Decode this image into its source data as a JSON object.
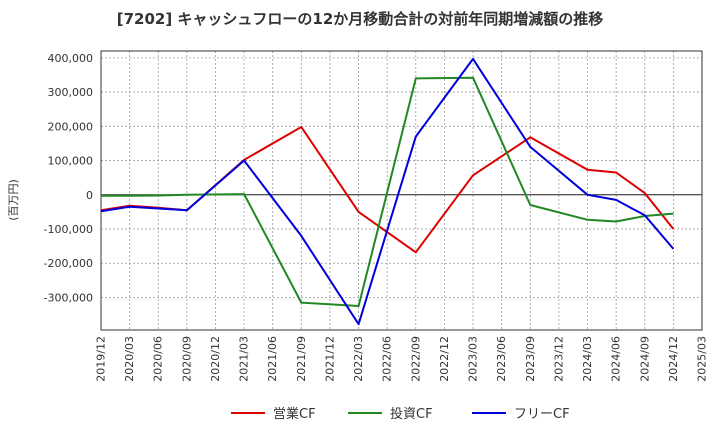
{
  "chart_data": {
    "type": "line",
    "title": "[7202]  キャッシュフローの12か月移動合計の対前年同期増減額の推移",
    "xlabel": "",
    "ylabel": "(百万円)",
    "ylim": [
      -395000,
      420000
    ],
    "grid": true,
    "legend_position": "bottom",
    "yticks": [
      400000,
      300000,
      200000,
      100000,
      0,
      -100000,
      -200000,
      -300000
    ],
    "ytick_labels": [
      "400,000",
      "300,000",
      "200,000",
      "100,000",
      "0",
      "-100,000",
      "-200,000",
      "-300,000"
    ],
    "x": [
      "2019/12",
      "2020/03",
      "2020/06",
      "2020/09",
      "2020/12",
      "2021/03",
      "2021/06",
      "2021/09",
      "2021/12",
      "2022/03",
      "2022/06",
      "2022/09",
      "2022/12",
      "2023/03",
      "2023/06",
      "2023/09",
      "2023/12",
      "2024/03",
      "2024/06",
      "2024/09",
      "2024/12",
      "2025/03"
    ],
    "series": [
      {
        "name": "営業CF",
        "color": "#dd0000",
        "values": [
          -45000,
          -32000,
          -38000,
          -45000,
          null,
          102000,
          null,
          198000,
          null,
          -50000,
          null,
          -168000,
          null,
          57000,
          null,
          168000,
          null,
          73000,
          65000,
          5000,
          -100000,
          null
        ]
      },
      {
        "name": "投資CF",
        "color": "#228822",
        "values": [
          -3000,
          -3000,
          -2000,
          0,
          null,
          2000,
          null,
          -315000,
          null,
          -325000,
          null,
          340000,
          null,
          342000,
          null,
          -30000,
          null,
          -73000,
          -78000,
          -62000,
          -55000,
          null
        ]
      },
      {
        "name": "フリーCF",
        "color": "#0000dd",
        "values": [
          -48000,
          -35000,
          -40000,
          -45000,
          null,
          100000,
          null,
          -120000,
          null,
          -378000,
          null,
          170000,
          null,
          397000,
          null,
          140000,
          null,
          0,
          -15000,
          -60000,
          -158000,
          null
        ]
      }
    ]
  }
}
